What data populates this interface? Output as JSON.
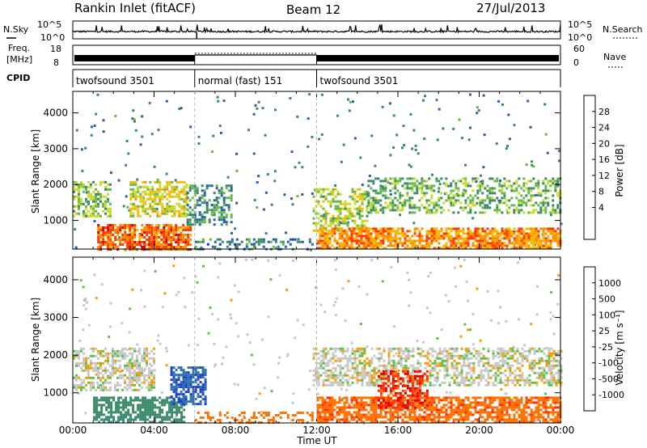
{
  "header": {
    "station": "Rankin Inlet (fitACF)",
    "beam": "Beam 12",
    "date": "27/Jul/2013"
  },
  "side_labels": {
    "nsky": "N.Sky",
    "nsearch": "N.Search",
    "freq_line1": "Freq.",
    "freq_line2": "[MHz]",
    "nave": "Nave",
    "cpid": "CPID"
  },
  "small_axes": {
    "nsky_top": "10^5",
    "nsky_bottom": "10^0",
    "nsearch_top": "10^5",
    "nsearch_bottom": "10^0",
    "freq_top": "18",
    "freq_bottom": "8",
    "nave_top": "60",
    "nave_bottom": "0"
  },
  "cpid_segments": [
    {
      "label": "twofsound 3501",
      "start_hour": 0,
      "end_hour": 6
    },
    {
      "label": "normal (fast) 151",
      "start_hour": 6,
      "end_hour": 12
    },
    {
      "label": "twofsound 3501",
      "start_hour": 12,
      "end_hour": 24
    }
  ],
  "panels": {
    "power": {
      "ylabel": "Slant Range [km]",
      "cb_label": "Power [dB]",
      "cb_ticks": [
        "28",
        "24",
        "20",
        "16",
        "12",
        "8",
        "4"
      ],
      "cb_colors": [
        "#e00000",
        "#ff3a00",
        "#ff8a00",
        "#f5b800",
        "#c8dc2a",
        "#66b84a",
        "#3a8a6a",
        "#2a5fa8",
        "#1a2ee0"
      ]
    },
    "velocity": {
      "ylabel": "Slant Range [km]",
      "cb_label": "Velocity [m s⁻¹]",
      "cb_ticks": [
        "1000",
        "500",
        "100",
        "25",
        "-25",
        "-100",
        "-500",
        "-1000"
      ],
      "cb_colors": [
        "#1a3ed0",
        "#2e6fb0",
        "#3a8a6a",
        "#5fc04a",
        "#c8c8c8",
        "#f5a000",
        "#ff7000",
        "#ff3000",
        "#e00000"
      ]
    }
  },
  "xaxis": {
    "label": "Time UT",
    "ticks": [
      "00:00",
      "04:00",
      "08:00",
      "12:00",
      "16:00",
      "20:00",
      "00:00"
    ]
  },
  "chart_data": [
    {
      "type": "heatmap",
      "title": "Power [dB]",
      "xlabel": "Time UT",
      "ylabel": "Slant Range [km]",
      "xlim_hours": [
        0,
        24
      ],
      "ylim_km": [
        200,
        4600
      ],
      "yticks": [
        1000,
        2000,
        3000,
        4000
      ],
      "colorbar_ticks_db": [
        4,
        8,
        12,
        16,
        20,
        24,
        28
      ],
      "features": [
        {
          "t0": 0.0,
          "t1": 1.8,
          "r0": 1100,
          "r1": 2100,
          "level_db": 14,
          "density": 0.55
        },
        {
          "t0": 1.2,
          "t1": 5.8,
          "r0": 200,
          "r1": 900,
          "level_db": 26,
          "density": 0.8
        },
        {
          "t0": 2.8,
          "t1": 5.6,
          "r0": 1100,
          "r1": 2100,
          "level_db": 18,
          "density": 0.6
        },
        {
          "t0": 5.6,
          "t1": 7.8,
          "r0": 900,
          "r1": 2000,
          "level_db": 10,
          "density": 0.45
        },
        {
          "t0": 6.0,
          "t1": 11.8,
          "r0": 200,
          "r1": 500,
          "level_db": 8,
          "density": 0.3
        },
        {
          "t0": 11.8,
          "t1": 14.5,
          "r0": 700,
          "r1": 1900,
          "level_db": 16,
          "density": 0.5
        },
        {
          "t0": 12.0,
          "t1": 24.0,
          "r0": 200,
          "r1": 800,
          "level_db": 24,
          "density": 0.75
        },
        {
          "t0": 14.5,
          "t1": 24.0,
          "r0": 1200,
          "r1": 2200,
          "level_db": 13,
          "density": 0.45
        }
      ]
    },
    {
      "type": "heatmap",
      "title": "Velocity [m s⁻¹]",
      "xlabel": "Time UT",
      "ylabel": "Slant Range [km]",
      "xlim_hours": [
        0,
        24
      ],
      "ylim_km": [
        200,
        4600
      ],
      "yticks": [
        1000,
        2000,
        3000,
        4000
      ],
      "colorbar_ticks_ms": [
        -1000,
        -500,
        -100,
        -25,
        25,
        100,
        500,
        1000
      ],
      "features": [
        {
          "t0": 0.0,
          "t1": 4.0,
          "r0": 1100,
          "r1": 2200,
          "velocity_ms": 0,
          "density": 0.55
        },
        {
          "t0": 1.0,
          "t1": 5.5,
          "r0": 200,
          "r1": 900,
          "velocity_ms": 120,
          "density": 0.7
        },
        {
          "t0": 4.8,
          "t1": 6.5,
          "r0": 700,
          "r1": 1700,
          "velocity_ms": 700,
          "density": 0.7
        },
        {
          "t0": 6.0,
          "t1": 11.8,
          "r0": 200,
          "r1": 500,
          "velocity_ms": -200,
          "density": 0.35
        },
        {
          "t0": 11.8,
          "t1": 24.0,
          "r0": 1200,
          "r1": 2200,
          "velocity_ms": 0,
          "density": 0.55
        },
        {
          "t0": 12.0,
          "t1": 24.0,
          "r0": 200,
          "r1": 900,
          "velocity_ms": -400,
          "density": 0.7
        },
        {
          "t0": 15.0,
          "t1": 17.5,
          "r0": 600,
          "r1": 1600,
          "velocity_ms": -700,
          "density": 0.6
        }
      ]
    }
  ]
}
